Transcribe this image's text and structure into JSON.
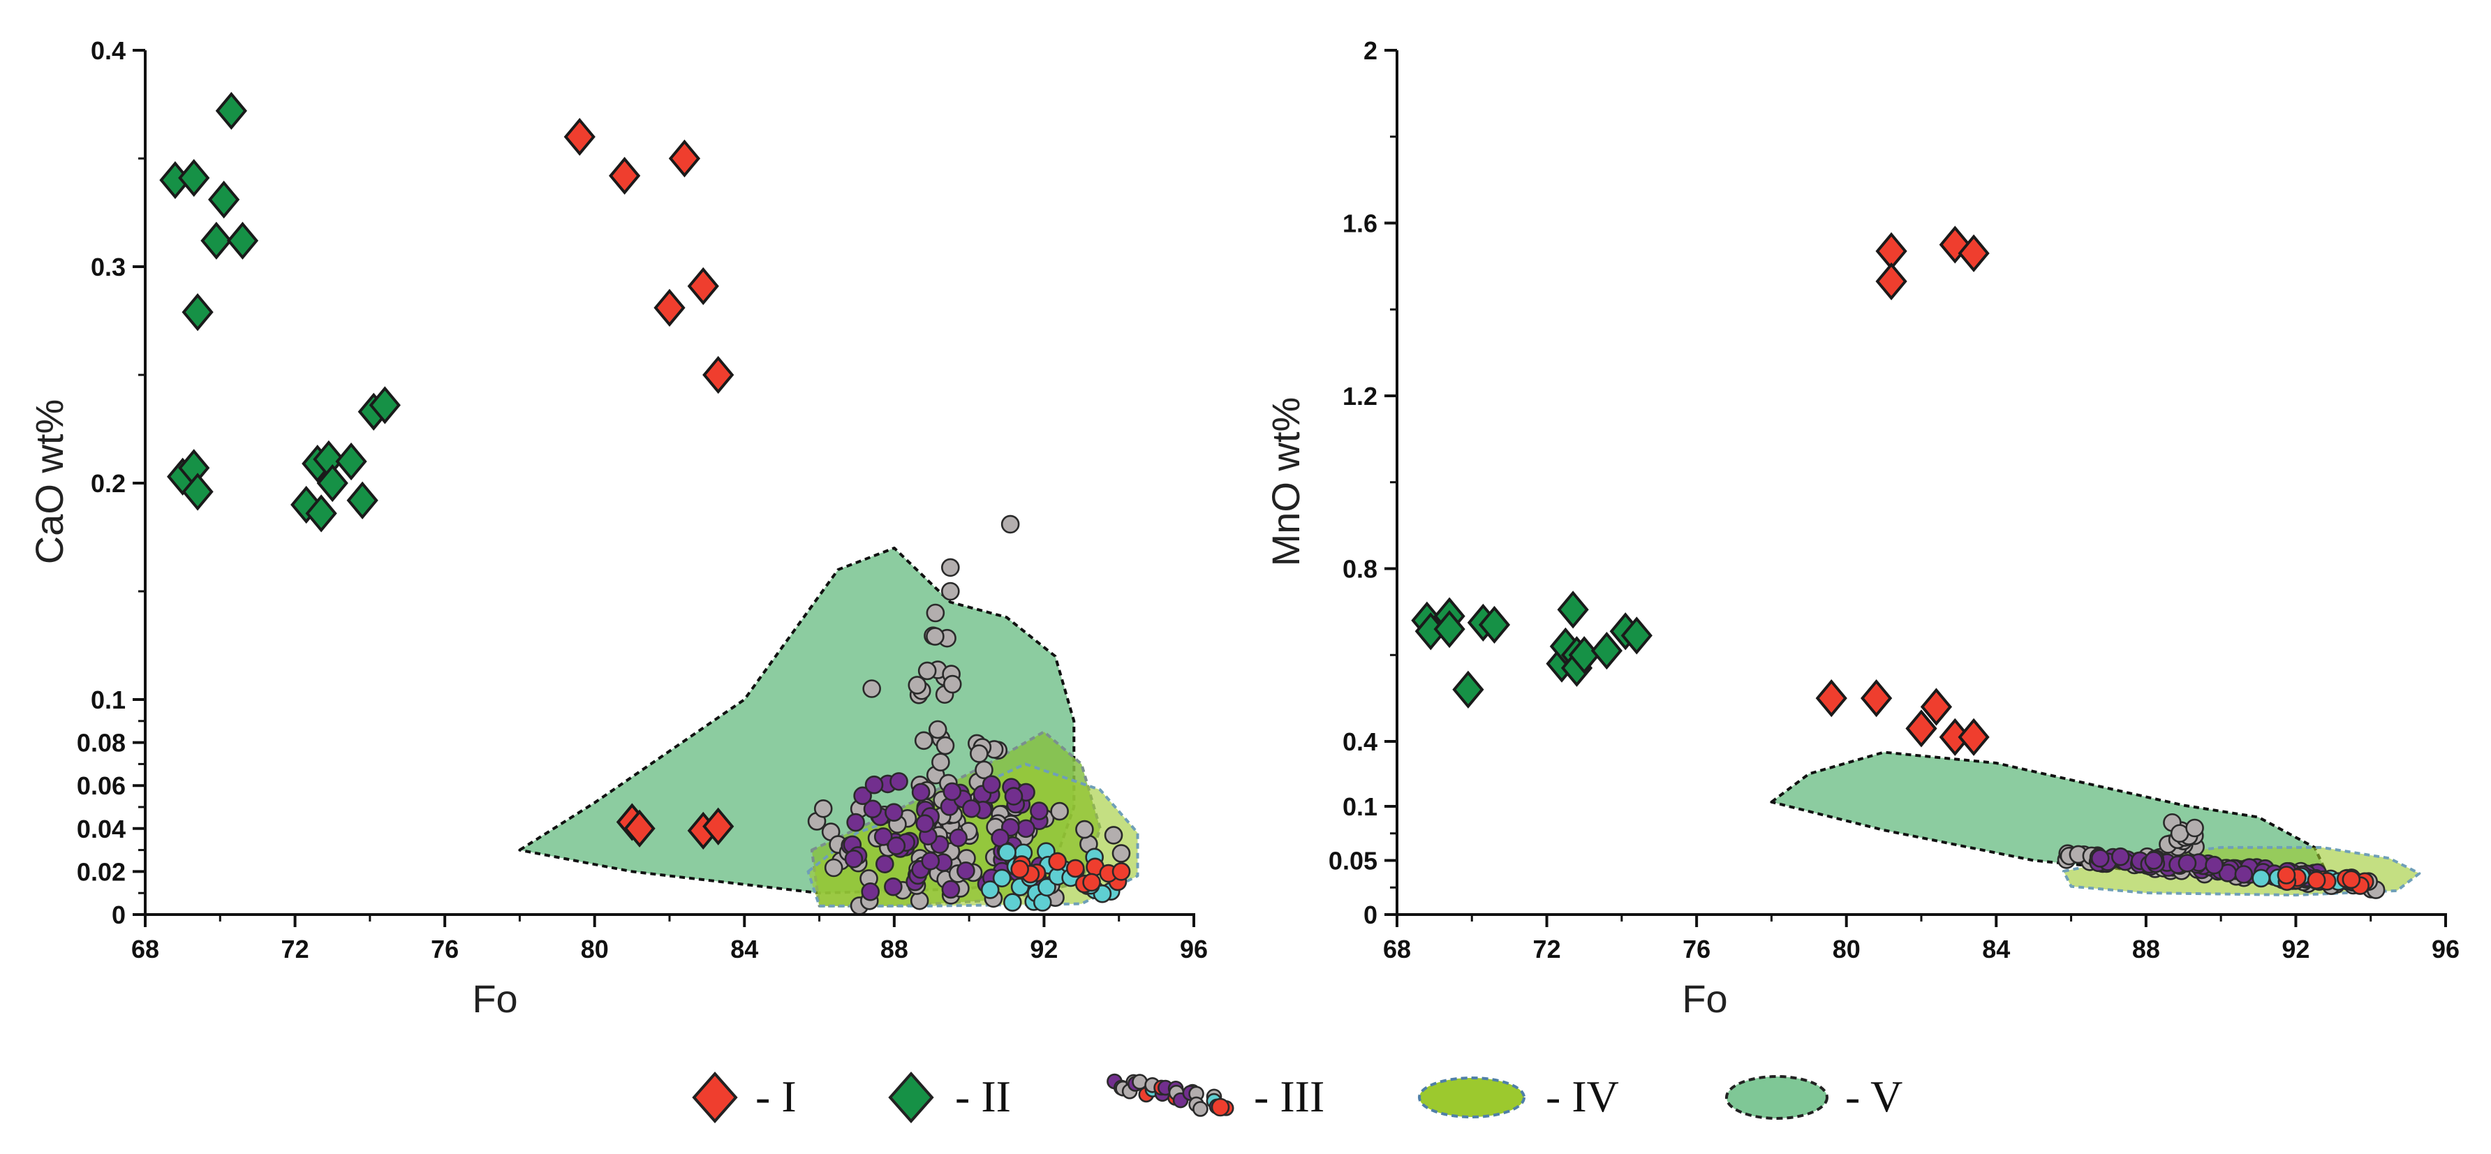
{
  "colors": {
    "I": "#ef3e2e",
    "II": "#169146",
    "III_gray": "#b3aeae",
    "III_purple": "#722f8e",
    "III_cyan": "#5fcfd2",
    "III_red": "#ef3e2e",
    "IV": "#9cc92e",
    "V": "#7fc796"
  },
  "legend": {
    "I": "- I",
    "II": "- II",
    "III": "- III",
    "IV": "- IV",
    "V": "- V"
  },
  "chart_data": [
    {
      "id": "cao",
      "type": "scatter",
      "xlabel": "Fo",
      "ylabel": "CaO wt%",
      "xlim": [
        68,
        96
      ],
      "xticks": [
        68,
        72,
        76,
        80,
        84,
        88,
        92,
        96
      ],
      "y_scale": "broken",
      "yticks_lower": [
        0,
        0.02,
        0.04,
        0.06,
        0.08,
        0.1
      ],
      "yticks_upper": [
        0.1,
        0.2,
        0.3,
        0.4
      ],
      "y_tick_labels": [
        "0",
        "0.02",
        "0.04",
        "0.06",
        "0.08",
        "0.1",
        "0.2",
        "0.3",
        "0.4"
      ],
      "series": [
        {
          "name": "I",
          "marker": "diamond",
          "points": [
            [
              79.6,
              0.36
            ],
            [
              80.8,
              0.342
            ],
            [
              82.4,
              0.35
            ],
            [
              82.0,
              0.281
            ],
            [
              82.9,
              0.291
            ],
            [
              83.3,
              0.25
            ],
            [
              81.0,
              0.043
            ],
            [
              81.2,
              0.04
            ],
            [
              82.9,
              0.039
            ],
            [
              83.3,
              0.041
            ]
          ]
        },
        {
          "name": "II",
          "marker": "diamond",
          "points": [
            [
              68.8,
              0.34
            ],
            [
              69.3,
              0.341
            ],
            [
              70.3,
              0.372
            ],
            [
              70.1,
              0.331
            ],
            [
              69.9,
              0.312
            ],
            [
              70.6,
              0.312
            ],
            [
              69.4,
              0.279
            ],
            [
              69.0,
              0.203
            ],
            [
              69.3,
              0.207
            ],
            [
              69.4,
              0.196
            ],
            [
              72.3,
              0.19
            ],
            [
              72.6,
              0.209
            ],
            [
              72.9,
              0.211
            ],
            [
              73.5,
              0.21
            ],
            [
              72.7,
              0.186
            ],
            [
              73.0,
              0.2
            ],
            [
              73.8,
              0.192
            ],
            [
              74.1,
              0.233
            ],
            [
              74.4,
              0.236
            ]
          ]
        }
      ],
      "fields": [
        {
          "name": "V",
          "polygon": [
            [
              78,
              0.03
            ],
            [
              80,
              0.052
            ],
            [
              84,
              0.1
            ],
            [
              86.5,
              0.16
            ],
            [
              88,
              0.17
            ],
            [
              89.5,
              0.145
            ],
            [
              91,
              0.138
            ],
            [
              92.3,
              0.12
            ],
            [
              92.8,
              0.09
            ],
            [
              92.8,
              0.05
            ],
            [
              92.2,
              0.02
            ],
            [
              90,
              0.012
            ],
            [
              86,
              0.01
            ],
            [
              81,
              0.02
            ]
          ]
        },
        {
          "name": "IV_dark",
          "polygon": [
            [
              85.8,
              0.03
            ],
            [
              88,
              0.048
            ],
            [
              90.5,
              0.07
            ],
            [
              92,
              0.085
            ],
            [
              93,
              0.07
            ],
            [
              93.5,
              0.04
            ],
            [
              93,
              0.015
            ],
            [
              91,
              0.007
            ],
            [
              88,
              0.004
            ],
            [
              86,
              0.004
            ]
          ]
        },
        {
          "name": "IV_light",
          "polygon": [
            [
              85.7,
              0.02
            ],
            [
              87,
              0.038
            ],
            [
              89,
              0.05
            ],
            [
              91.5,
              0.07
            ],
            [
              93.5,
              0.058
            ],
            [
              94.5,
              0.038
            ],
            [
              94.5,
              0.018
            ],
            [
              93,
              0.005
            ],
            [
              89,
              0.004
            ],
            [
              86,
              0.004
            ]
          ]
        }
      ],
      "cloud": {
        "name": "III",
        "extra_points": [
          [
            91.1,
            0.181
          ],
          [
            89.5,
            0.161
          ],
          [
            89.5,
            0.15
          ],
          [
            89.1,
            0.14
          ],
          [
            87.4,
            0.105
          ],
          [
            89.7,
            0.019
          ]
        ]
      }
    },
    {
      "id": "mno",
      "type": "scatter",
      "xlabel": "Fo",
      "ylabel": "MnO wt%",
      "xlim": [
        68,
        96
      ],
      "xticks": [
        68,
        72,
        76,
        80,
        84,
        88,
        92,
        96
      ],
      "y_scale": "broken",
      "yticks_lower": [
        0,
        0.05,
        0.1
      ],
      "yticks_upper": [
        0.4,
        0.8,
        1.2,
        1.6,
        2
      ],
      "y_tick_labels": [
        "0",
        "0.05",
        "0.1",
        "0.4",
        "0.8",
        "1.2",
        "1.6",
        "2"
      ],
      "series": [
        {
          "name": "I",
          "marker": "diamond",
          "points": [
            [
              81.2,
              1.535
            ],
            [
              81.2,
              1.465
            ],
            [
              82.9,
              1.55
            ],
            [
              83.4,
              1.53
            ],
            [
              79.6,
              0.5
            ],
            [
              80.8,
              0.5
            ],
            [
              82.0,
              0.43
            ],
            [
              82.4,
              0.48
            ],
            [
              82.9,
              0.41
            ],
            [
              83.4,
              0.41
            ]
          ]
        },
        {
          "name": "II",
          "marker": "diamond",
          "points": [
            [
              68.8,
              0.68
            ],
            [
              69.4,
              0.69
            ],
            [
              68.9,
              0.655
            ],
            [
              69.4,
              0.66
            ],
            [
              70.3,
              0.675
            ],
            [
              70.6,
              0.67
            ],
            [
              69.9,
              0.52
            ],
            [
              72.4,
              0.58
            ],
            [
              72.5,
              0.62
            ],
            [
              72.8,
              0.6
            ],
            [
              72.8,
              0.57
            ],
            [
              73.0,
              0.6
            ],
            [
              72.7,
              0.705
            ],
            [
              73.6,
              0.61
            ],
            [
              74.1,
              0.655
            ],
            [
              74.4,
              0.645
            ]
          ]
        }
      ],
      "fields": [
        {
          "name": "V",
          "polygon": [
            [
              78,
              0.12
            ],
            [
              79,
              0.25
            ],
            [
              81,
              0.35
            ],
            [
              84,
              0.3
            ],
            [
              89,
              0.105
            ],
            [
              91,
              0.09
            ],
            [
              92.5,
              0.062
            ],
            [
              92.8,
              0.04
            ],
            [
              91,
              0.033
            ],
            [
              88,
              0.04
            ],
            [
              85,
              0.05
            ],
            [
              81,
              0.078
            ]
          ]
        },
        {
          "name": "IV",
          "polygon": [
            [
              85.8,
              0.04
            ],
            [
              87.5,
              0.052
            ],
            [
              90,
              0.062
            ],
            [
              92.7,
              0.062
            ],
            [
              94.5,
              0.052
            ],
            [
              95.3,
              0.038
            ],
            [
              94.7,
              0.022
            ],
            [
              92,
              0.018
            ],
            [
              88,
              0.02
            ],
            [
              86,
              0.026
            ]
          ]
        }
      ],
      "cloud": {
        "name": "III",
        "extra_points": [
          [
            88.7,
            0.085
          ],
          [
            88.9,
            0.075
          ],
          [
            89.3,
            0.08
          ]
        ]
      }
    }
  ]
}
